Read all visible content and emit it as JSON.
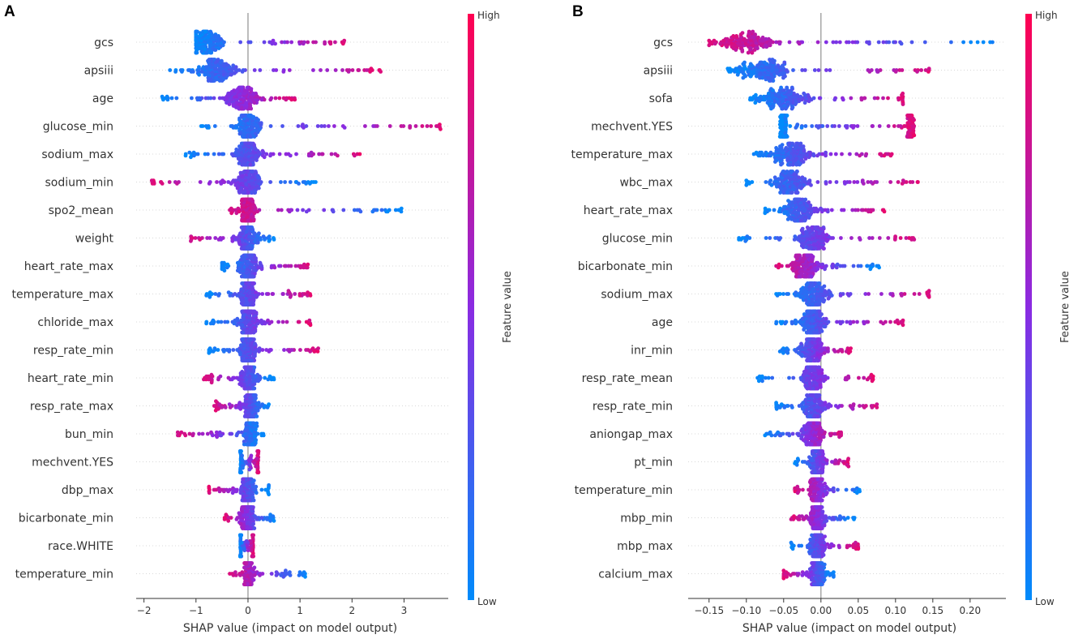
{
  "chart_data": [
    {
      "panel": "A",
      "type": "scatter",
      "subtype": "shap-beeswarm",
      "xlabel": "SHAP value (impact on model output)",
      "xlim": [
        -2.15,
        3.85
      ],
      "xticks": [
        -2,
        -1,
        0,
        1,
        2,
        3
      ],
      "xtick_labels": [
        "−2",
        "−1",
        "0",
        "1",
        "2",
        "3"
      ],
      "colorbar": {
        "title": "Feature value",
        "high_label": "High",
        "low_label": "Low"
      },
      "features": [
        {
          "name": "gcs",
          "range": [
            -1.0,
            1.85
          ],
          "center": -0.8,
          "spread": 0.5,
          "corr": 1,
          "shape": "split"
        },
        {
          "name": "apsiii",
          "range": [
            -1.5,
            2.55
          ],
          "center": -0.6,
          "spread": 0.6,
          "corr": 1
        },
        {
          "name": "age",
          "range": [
            -1.65,
            0.9
          ],
          "center": -0.1,
          "spread": 0.55,
          "corr": 1
        },
        {
          "name": "glucose_min",
          "range": [
            -0.9,
            3.7
          ],
          "center": 0.0,
          "spread": 0.4,
          "corr": 1
        },
        {
          "name": "sodium_max",
          "range": [
            -1.2,
            2.15
          ],
          "center": 0.0,
          "spread": 0.4,
          "corr": 1
        },
        {
          "name": "sodium_min",
          "range": [
            -1.85,
            1.3
          ],
          "center": 0.0,
          "spread": 0.4,
          "corr": -1
        },
        {
          "name": "spo2_mean",
          "range": [
            -0.35,
            2.95
          ],
          "center": 0.0,
          "spread": 0.3,
          "corr": -1
        },
        {
          "name": "weight",
          "range": [
            -1.1,
            0.5
          ],
          "center": 0.0,
          "spread": 0.3,
          "corr": -1
        },
        {
          "name": "heart_rate_max",
          "range": [
            -0.5,
            1.15
          ],
          "center": 0.0,
          "spread": 0.3,
          "corr": 1
        },
        {
          "name": "temperature_max",
          "range": [
            -0.8,
            1.2
          ],
          "center": 0.0,
          "spread": 0.3,
          "corr": 1
        },
        {
          "name": "chloride_max",
          "range": [
            -0.8,
            1.2
          ],
          "center": 0.0,
          "spread": 0.3,
          "corr": 1
        },
        {
          "name": "resp_rate_min",
          "range": [
            -0.75,
            1.35
          ],
          "center": 0.0,
          "spread": 0.3,
          "corr": 1
        },
        {
          "name": "heart_rate_min",
          "range": [
            -0.85,
            0.5
          ],
          "center": 0.0,
          "spread": 0.25,
          "corr": -1
        },
        {
          "name": "resp_rate_max",
          "range": [
            -0.65,
            0.4
          ],
          "center": 0.05,
          "spread": 0.2,
          "corr": -1
        },
        {
          "name": "bun_min",
          "range": [
            -1.35,
            0.3
          ],
          "center": 0.05,
          "spread": 0.2,
          "corr": -1
        },
        {
          "name": "mechvent.YES",
          "range": [
            -0.15,
            0.2
          ],
          "center": 0.0,
          "spread": 0.1,
          "corr": 1,
          "shape": "binary"
        },
        {
          "name": "dbp_max",
          "range": [
            -0.75,
            0.4
          ],
          "center": 0.0,
          "spread": 0.2,
          "corr": -1
        },
        {
          "name": "bicarbonate_min",
          "range": [
            -0.45,
            0.5
          ],
          "center": 0.0,
          "spread": 0.2,
          "corr": -1
        },
        {
          "name": "race.WHITE",
          "range": [
            -0.15,
            0.1
          ],
          "center": 0.0,
          "spread": 0.1,
          "corr": 1,
          "shape": "binary"
        },
        {
          "name": "temperature_min",
          "range": [
            -0.35,
            1.1
          ],
          "center": 0.0,
          "spread": 0.15,
          "corr": -1
        }
      ]
    },
    {
      "panel": "B",
      "type": "scatter",
      "subtype": "shap-beeswarm",
      "xlabel": "SHAP value (impact on model output)",
      "xlim": [
        -0.178,
        0.248
      ],
      "xticks": [
        -0.15,
        -0.1,
        -0.05,
        0.0,
        0.05,
        0.1,
        0.15,
        0.2
      ],
      "xtick_labels": [
        "−0.15",
        "−0.10",
        "−0.05",
        "0.00",
        "0.05",
        "0.10",
        "0.15",
        "0.20"
      ],
      "colorbar": {
        "title": "Feature value",
        "high_label": "High",
        "low_label": "Low"
      },
      "features": [
        {
          "name": "gcs",
          "range": [
            -0.15,
            0.23
          ],
          "center": -0.1,
          "spread": 0.07,
          "corr": -1,
          "shape": "split"
        },
        {
          "name": "apsiii",
          "range": [
            -0.125,
            0.145
          ],
          "center": -0.08,
          "spread": 0.06,
          "corr": 1
        },
        {
          "name": "sofa",
          "range": [
            -0.095,
            0.11
          ],
          "center": -0.05,
          "spread": 0.06,
          "corr": 1
        },
        {
          "name": "mechvent.YES",
          "range": [
            -0.055,
            0.125
          ],
          "center": -0.04,
          "spread": 0.05,
          "corr": 1,
          "shape": "binary"
        },
        {
          "name": "temperature_max",
          "range": [
            -0.09,
            0.095
          ],
          "center": -0.04,
          "spread": 0.04,
          "corr": 1
        },
        {
          "name": "wbc_max",
          "range": [
            -0.1,
            0.13
          ],
          "center": -0.04,
          "spread": 0.04,
          "corr": 1
        },
        {
          "name": "heart_rate_max",
          "range": [
            -0.075,
            0.085
          ],
          "center": -0.03,
          "spread": 0.035,
          "corr": 1
        },
        {
          "name": "glucose_min",
          "range": [
            -0.11,
            0.125
          ],
          "center": -0.01,
          "spread": 0.035,
          "corr": 1
        },
        {
          "name": "bicarbonate_min",
          "range": [
            -0.06,
            0.078
          ],
          "center": -0.02,
          "spread": 0.03,
          "corr": -1
        },
        {
          "name": "sodium_max",
          "range": [
            -0.06,
            0.145
          ],
          "center": -0.01,
          "spread": 0.03,
          "corr": 1
        },
        {
          "name": "age",
          "range": [
            -0.06,
            0.11
          ],
          "center": -0.01,
          "spread": 0.03,
          "corr": 1
        },
        {
          "name": "inr_min",
          "range": [
            -0.055,
            0.04
          ],
          "center": -0.01,
          "spread": 0.025,
          "corr": 1
        },
        {
          "name": "resp_rate_mean",
          "range": [
            -0.085,
            0.07
          ],
          "center": -0.01,
          "spread": 0.025,
          "corr": 1
        },
        {
          "name": "resp_rate_min",
          "range": [
            -0.06,
            0.075
          ],
          "center": -0.01,
          "spread": 0.025,
          "corr": 1
        },
        {
          "name": "aniongap_max",
          "range": [
            -0.075,
            0.027
          ],
          "center": -0.01,
          "spread": 0.02,
          "corr": 1
        },
        {
          "name": "pt_min",
          "range": [
            -0.035,
            0.037
          ],
          "center": -0.005,
          "spread": 0.015,
          "corr": 1
        },
        {
          "name": "temperature_min",
          "range": [
            -0.035,
            0.052
          ],
          "center": -0.005,
          "spread": 0.015,
          "corr": -1
        },
        {
          "name": "mbp_min",
          "range": [
            -0.04,
            0.045
          ],
          "center": -0.005,
          "spread": 0.015,
          "corr": -1
        },
        {
          "name": "mbp_max",
          "range": [
            -0.04,
            0.05
          ],
          "center": -0.005,
          "spread": 0.015,
          "corr": 1
        },
        {
          "name": "calcium_max",
          "range": [
            -0.05,
            0.017
          ],
          "center": -0.005,
          "spread": 0.015,
          "corr": -1
        }
      ]
    }
  ],
  "colors": {
    "high": "#ff0051",
    "mid": "#8a2be2",
    "low": "#008bfb",
    "zero_line": "#999999",
    "grid": "#cccccc"
  }
}
